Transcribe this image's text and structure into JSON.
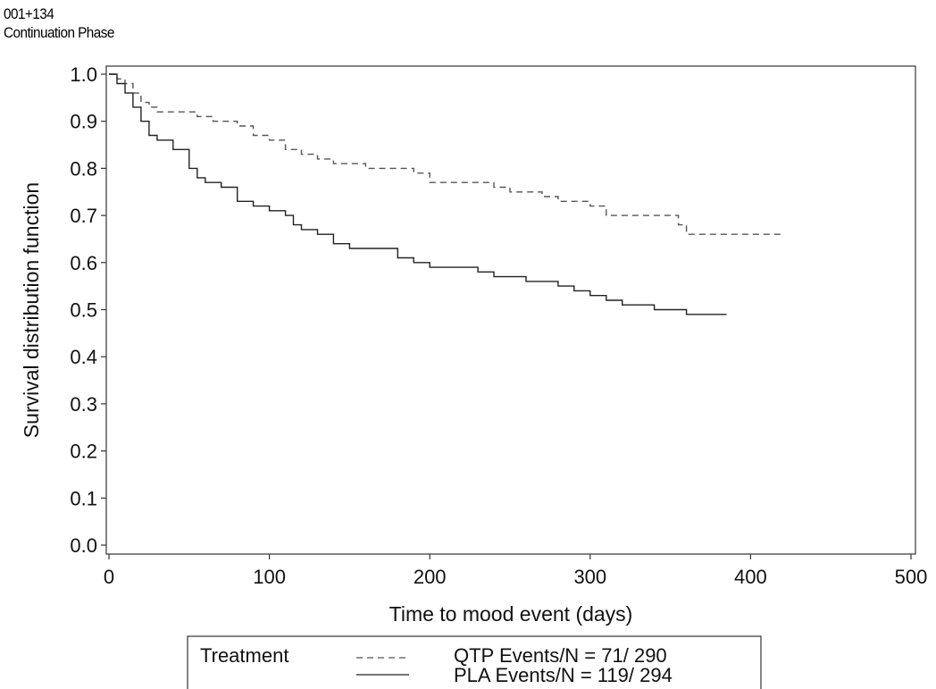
{
  "header": {
    "line1": "001+134",
    "line2": "Continuation Phase"
  },
  "chart_data": {
    "type": "line",
    "xlabel": "Time to mood event (days)",
    "ylabel": "Survival distribution function",
    "xlim": [
      0,
      500
    ],
    "ylim": [
      0.0,
      1.0
    ],
    "x_ticks": [
      "0",
      "100",
      "200",
      "300",
      "400",
      "500"
    ],
    "y_ticks": [
      "0.0",
      "0.1",
      "0.2",
      "0.3",
      "0.4",
      "0.5",
      "0.6",
      "0.7",
      "0.8",
      "0.9",
      "1.0"
    ],
    "grid": false,
    "legend": {
      "title": "Treatment",
      "placement": "bottom"
    },
    "series": [
      {
        "name": "QTP Events/N = 71/ 290",
        "style": "dashed",
        "color": "#555555",
        "x": [
          0,
          5,
          10,
          15,
          20,
          25,
          30,
          40,
          55,
          65,
          80,
          90,
          100,
          110,
          120,
          130,
          140,
          150,
          160,
          180,
          190,
          200,
          220,
          240,
          250,
          270,
          280,
          300,
          310,
          330,
          355,
          360,
          420
        ],
        "y": [
          1.0,
          0.99,
          0.98,
          0.96,
          0.94,
          0.93,
          0.92,
          0.92,
          0.91,
          0.9,
          0.89,
          0.87,
          0.86,
          0.84,
          0.83,
          0.82,
          0.81,
          0.81,
          0.8,
          0.8,
          0.79,
          0.77,
          0.77,
          0.76,
          0.75,
          0.74,
          0.73,
          0.72,
          0.7,
          0.7,
          0.68,
          0.66,
          0.66
        ]
      },
      {
        "name": "PLA Events/N = 119/ 294",
        "style": "solid",
        "color": "#222222",
        "x": [
          0,
          5,
          10,
          15,
          20,
          25,
          30,
          40,
          50,
          55,
          60,
          70,
          80,
          90,
          100,
          110,
          115,
          120,
          130,
          140,
          150,
          160,
          180,
          190,
          200,
          230,
          240,
          260,
          280,
          290,
          300,
          310,
          320,
          340,
          360,
          385
        ],
        "y": [
          1.0,
          0.98,
          0.96,
          0.93,
          0.9,
          0.87,
          0.86,
          0.84,
          0.8,
          0.78,
          0.77,
          0.76,
          0.73,
          0.72,
          0.71,
          0.7,
          0.68,
          0.67,
          0.66,
          0.64,
          0.63,
          0.63,
          0.61,
          0.6,
          0.59,
          0.58,
          0.57,
          0.56,
          0.55,
          0.54,
          0.53,
          0.52,
          0.51,
          0.5,
          0.49,
          0.49
        ]
      }
    ]
  }
}
